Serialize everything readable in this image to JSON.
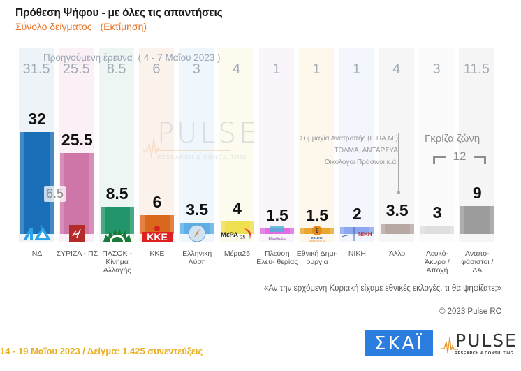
{
  "header": {
    "title": "Πρόθεση Ψήφου - με όλες τις απαντήσεις",
    "subtitle": "Σύνολο δείγματος",
    "subtitle_note": "(Εκτίμηση)"
  },
  "previous_survey": {
    "label": "Προηγούμενη έρευνα",
    "dates": "( 4 - 7 Μαΐου  2023 )"
  },
  "difference_badge": "6.5",
  "others_note": {
    "line1": "Συμμαχία Ανατροπής (Ε.ΠΑ.Μ.)",
    "line2": "ΤΟΛΜΑ, ΑΝΤΑΡΣΥΑ",
    "line3": "Οικολόγοι Πράσινοι   κ.ά."
  },
  "gray_zone": {
    "title": "Γκρίζα ζώνη",
    "value": "12"
  },
  "watermark": {
    "text": "PULSE",
    "sub": "RESEARCH & CONSULTING"
  },
  "question": "«Αν την ερχόμενη Κυριακή είχαμε εθνικές εκλογές, τι θα ψηφίζατε;»",
  "copyright": "© 2023 Pulse RC",
  "footer": {
    "info": "14 - 19  Μαΐου  2023  /  Δείγμα:  1.425 συνεντεύξεις"
  },
  "logos": {
    "skai": "ΣΚΑΪ",
    "pulse": "PULSE",
    "pulse_sub": "RESEARCH & CONSULTING"
  },
  "parties": [
    {
      "name": "ΝΔ",
      "value": "32",
      "prev": "31.5",
      "color": "#1a6fb8",
      "bg": "#eef3f8",
      "logo": "ΝΔ"
    },
    {
      "name": "ΣΥΡΙΖΑ - ΠΣ",
      "value": "25.5",
      "prev": "25.5",
      "color": "#cf76a9",
      "bg": "#fbf0f5",
      "logo": "ΣΥΡΙΖΑ"
    },
    {
      "name": "ΠΑΣΟΚ - Κίνημα Αλλαγής",
      "value": "8.5",
      "prev": "8.5",
      "color": "#23956a",
      "bg": "#eef6f3",
      "logo": "ΠΑΣΟΚ"
    },
    {
      "name": "ΚΚΕ",
      "value": "6",
      "prev": "6",
      "color": "#d9681c",
      "bg": "#fcf2ec",
      "logo": "ΚΚΕ"
    },
    {
      "name": "Ελληνική Λύση",
      "value": "3.5",
      "prev": "3",
      "color": "#5daee8",
      "bg": "#eff6fc",
      "logo": "ΕΛ"
    },
    {
      "name": "Μέρα25",
      "value": "4",
      "prev": "4",
      "color": "#f0e050",
      "bg": "#fdfbee",
      "logo": "ΜέΡΑ25"
    },
    {
      "name": "Πλεύση Ελευ- θερίας",
      "value": "1.5",
      "prev": "1",
      "color": "#e06ee0",
      "bg": "#faf4fb",
      "logo": "ΠΕ"
    },
    {
      "name": "Εθνική Δημι- ουργία",
      "value": "1.5",
      "prev": "1",
      "color": "#e8a830",
      "bg": "#fdf7ec",
      "logo": "€"
    },
    {
      "name": "ΝΙΚΗ",
      "value": "2",
      "prev": "1",
      "color": "#8ca6f0",
      "bg": "#f3f6fd",
      "logo": "ΝΙΚΗ"
    },
    {
      "name": "Άλλο",
      "value": "3.5",
      "prev": "4",
      "color": "#b8a8a4",
      "bg": "#f7f6f6",
      "logo": ""
    },
    {
      "name": "Λευκό- Άκυρο /Αποχή",
      "value": "3",
      "prev": "3",
      "color": "#dedede",
      "bg": "#fbfbfb",
      "logo": ""
    },
    {
      "name": "Αναπο- φάσιστοι / ΔΑ",
      "value": "9",
      "prev": "11.5",
      "color": "#9c9c9c",
      "bg": "#f5f5f5",
      "logo": ""
    }
  ],
  "chart_data": {
    "type": "bar",
    "title": "Πρόθεση Ψήφου - με όλες τις απαντήσεις",
    "subtitle": "Σύνολο δείγματος (Εκτίμηση)",
    "xlabel": "",
    "ylabel": "",
    "categories": [
      "ΝΔ",
      "ΣΥΡΙΖΑ - ΠΣ",
      "ΠΑΣΟΚ - Κίνημα Αλλαγής",
      "ΚΚΕ",
      "Ελληνική Λύση",
      "Μέρα25",
      "Πλεύση Ελευθερίας",
      "Εθνική Δημιουργία",
      "ΝΙΚΗ",
      "Άλλο",
      "Λευκό-Άκυρο/Αποχή",
      "Αναποφάσιστοι / ΔΑ"
    ],
    "series": [
      {
        "name": "14 - 19 Μαΐου 2023",
        "values": [
          32,
          25.5,
          8.5,
          6,
          3.5,
          4,
          1.5,
          1.5,
          2,
          3.5,
          3,
          9
        ]
      },
      {
        "name": "Προηγούμενη έρευνα (4 - 7 Μαΐου 2023)",
        "values": [
          31.5,
          25.5,
          8.5,
          6,
          3,
          4,
          1,
          1,
          1,
          4,
          3,
          11.5
        ]
      }
    ],
    "annotations": [
      {
        "text": "6.5",
        "note": "difference ΝΔ - ΣΥΡΙΖΑ"
      },
      {
        "text": "Γκρίζα ζώνη 12",
        "note": "Λευκό-Άκυρο/Αποχή + Αναποφάσιστοι"
      },
      {
        "text": "Συμμαχία Ανατροπής (Ε.ΠΑ.Μ.), ΤΟΛΜΑ, ΑΝΤΑΡΣΥΑ, Οικολόγοι Πράσινοι κ.ά.",
        "note": "Άλλο"
      }
    ],
    "grid": false,
    "legend": "none",
    "sample": "1.425 συνεντεύξεις",
    "question": "«Αν την ερχόμενη Κυριακή είχαμε εθνικές εκλογές, τι θα ψηφίζατε;»"
  }
}
